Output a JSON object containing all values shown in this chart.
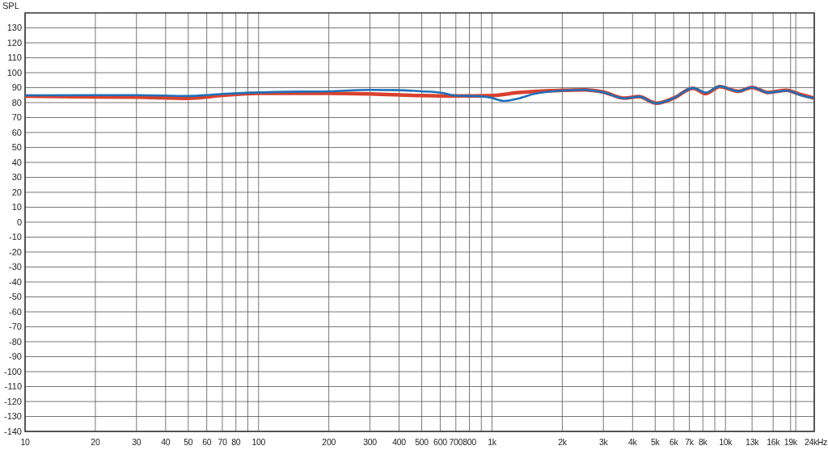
{
  "chart_data": {
    "type": "line",
    "ylabel": "SPL",
    "log": "x",
    "grid": true,
    "marker": "none",
    "line_style": "solid",
    "xlim": [
      10,
      24000
    ],
    "ylim": [
      -140,
      140
    ],
    "xticks": [
      10,
      20,
      30,
      40,
      50,
      60,
      70,
      80,
      {
        "value": 90,
        "label": null
      },
      100,
      200,
      300,
      400,
      500,
      600,
      700,
      800,
      {
        "value": 900,
        "label": null
      },
      {
        "value": 1000,
        "label": "1k"
      },
      {
        "value": 2000,
        "label": "2k"
      },
      {
        "value": 3000,
        "label": "3k"
      },
      {
        "value": 4000,
        "label": "4k"
      },
      {
        "value": 5000,
        "label": "5k"
      },
      {
        "value": 6000,
        "label": "6k"
      },
      {
        "value": 7000,
        "label": "7k"
      },
      {
        "value": 8000,
        "label": "8k"
      },
      {
        "value": 9000,
        "label": null
      },
      {
        "value": 10000,
        "label": "10k"
      },
      {
        "value": 13000,
        "label": "13k"
      },
      {
        "value": 16000,
        "label": "16k"
      },
      {
        "value": 19000,
        "label": "19k"
      },
      {
        "value": 20000,
        "label": null
      },
      {
        "value": 24000,
        "label": "24k"
      }
    ],
    "xlabel": "Hz",
    "yticks": [
      -140,
      -130,
      -120,
      -110,
      -100,
      -90,
      -80,
      -70,
      -60,
      -50,
      -40,
      -30,
      -20,
      -10,
      0,
      10,
      20,
      30,
      40,
      50,
      60,
      70,
      80,
      90,
      100,
      110,
      120,
      130
    ],
    "series": [
      {
        "color": "#d9412e",
        "x": [
          10,
          20,
          30,
          50,
          70,
          100,
          200,
          300,
          500,
          700,
          1000,
          1300,
          1770,
          2000,
          2500,
          3000,
          3700,
          4250,
          5070,
          6000,
          7260,
          8240,
          9440,
          11350,
          13000,
          15200,
          18300,
          20000,
          21500,
          24000
        ],
        "values": [
          84.3,
          83.8,
          83.6,
          82.9,
          84.8,
          86.2,
          86.2,
          85.8,
          84.7,
          84.4,
          84.7,
          86.7,
          88,
          88.2,
          88.5,
          87,
          83,
          84,
          79.6,
          83,
          89.6,
          86,
          90.7,
          87.6,
          90.2,
          86.8,
          88.3,
          86.5,
          85,
          83
        ]
      },
      {
        "color": "#1f70b8",
        "x": [
          10,
          20,
          30,
          50,
          70,
          117,
          200,
          300,
          398,
          494,
          612,
          696,
          843,
          990,
          1122,
          1285,
          1510,
          1963,
          2500,
          3020,
          3715,
          4256,
          5070,
          5995,
          7260,
          8240,
          9440,
          11350,
          13000,
          15240,
          18300,
          21500,
          24000
        ],
        "values": [
          84.9,
          85,
          85,
          84.4,
          85.8,
          87.1,
          87.6,
          88.5,
          88.3,
          87.6,
          86.5,
          84.7,
          84.4,
          83.3,
          81.1,
          82.6,
          85.8,
          88,
          88.5,
          86.7,
          82.8,
          84,
          79.5,
          83,
          89.8,
          86.7,
          90.9,
          87.6,
          90.3,
          86.7,
          88,
          84.4,
          83
        ]
      }
    ]
  }
}
